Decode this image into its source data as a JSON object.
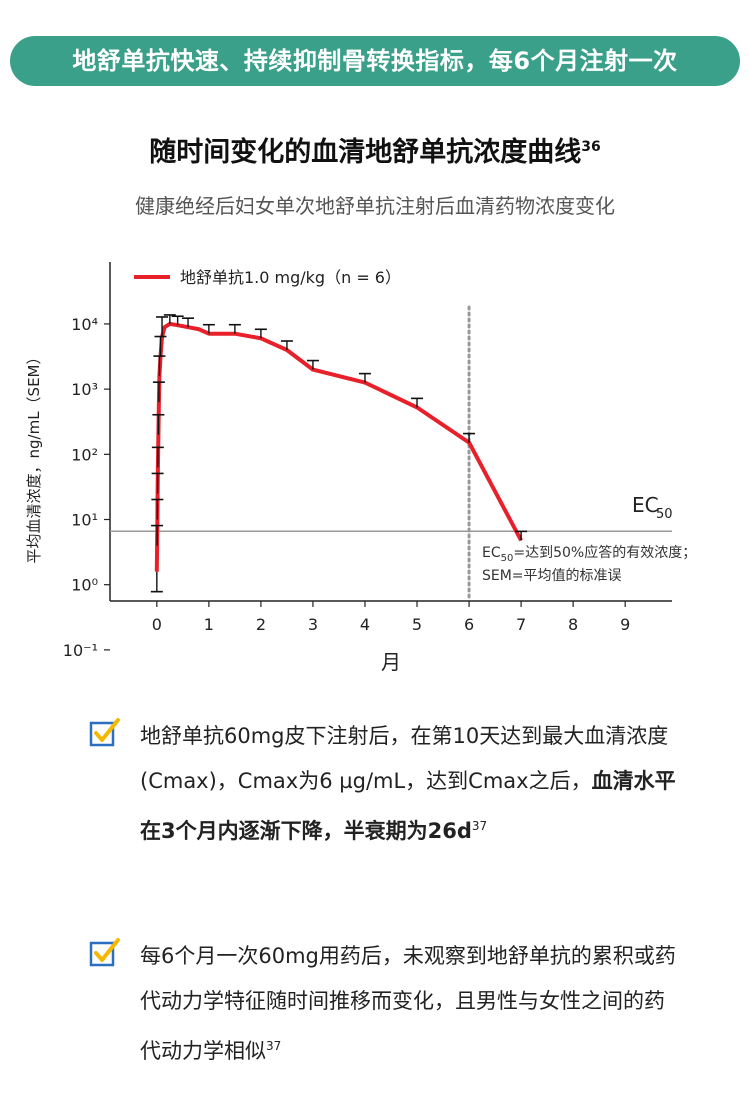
{
  "banner": "地舒单抗快速、持续抑制骨转换指标，每6个月注射一次",
  "title": "随时间变化的血清地舒单抗浓度曲线",
  "title_ref": "36",
  "subtitle": "健康绝经后妇女单次地舒单抗注射后血清药物浓度变化",
  "chart_data": {
    "type": "line",
    "xlabel": "月",
    "ylabel": "平均血清浓度，ng/mL（SEM）",
    "x_ticks": [
      "0",
      "1",
      "2",
      "3",
      "4",
      "5",
      "6",
      "7",
      "8",
      "9"
    ],
    "y_ticks": [
      "10⁻¹",
      "10⁰",
      "10¹",
      "10²",
      "10³",
      "10⁴"
    ],
    "xlim": [
      -0.9,
      9.9
    ],
    "ylim": [
      -0.25,
      4.95
    ],
    "y_scale": "log10",
    "legend_position": "top-left",
    "series": [
      {
        "name": "地舒单抗1.0 mg/kg（n = 6）",
        "color": "#e8202a",
        "points": [
          [
            0,
            0.2
          ],
          [
            0.005,
            0.6
          ],
          [
            0.01,
            1.0
          ],
          [
            0.015,
            1.4
          ],
          [
            0.02,
            1.8
          ],
          [
            0.03,
            2.3
          ],
          [
            0.04,
            2.8
          ],
          [
            0.05,
            3.2
          ],
          [
            0.07,
            3.5
          ],
          [
            0.1,
            3.8
          ],
          [
            0.15,
            3.95
          ],
          [
            0.25,
            4.0
          ],
          [
            0.4,
            3.98
          ],
          [
            0.6,
            3.95
          ],
          [
            0.8,
            3.92
          ],
          [
            1.0,
            3.85
          ],
          [
            1.5,
            3.85
          ],
          [
            2.0,
            3.78
          ],
          [
            2.5,
            3.6
          ],
          [
            3.0,
            3.3
          ],
          [
            4.0,
            3.1
          ],
          [
            5.0,
            2.72
          ],
          [
            6.0,
            2.18
          ],
          [
            7.0,
            0.68
          ]
        ],
        "error_points": [
          [
            0,
            0.2
          ],
          [
            0.005,
            0.6
          ],
          [
            0.01,
            1.0
          ],
          [
            0.015,
            1.4
          ],
          [
            0.02,
            1.8
          ],
          [
            0.03,
            2.3
          ],
          [
            0.04,
            2.8
          ],
          [
            0.05,
            3.2
          ],
          [
            0.07,
            3.5
          ],
          [
            0.1,
            3.8
          ],
          [
            0.25,
            4.0
          ],
          [
            0.4,
            3.98
          ],
          [
            0.6,
            3.95
          ],
          [
            1.0,
            3.85
          ],
          [
            1.5,
            3.85
          ],
          [
            2.0,
            3.78
          ],
          [
            2.5,
            3.6
          ],
          [
            3.0,
            3.3
          ],
          [
            4.0,
            3.1
          ],
          [
            5.0,
            2.72
          ],
          [
            6.0,
            2.18
          ],
          [
            7.0,
            0.68
          ]
        ]
      }
    ],
    "ec50_level_log10": 0.82,
    "ec50_label": "EC",
    "ec50_sub": "50",
    "vline_month": 6,
    "annotation_line1_pre": "EC",
    "annotation_line1_sub": "50",
    "annotation_line1_post": "=达到50%应答的有效浓度；",
    "annotation_line2": "SEM=平均值的标准误"
  },
  "notes": [
    {
      "text_plain": "地舒单抗60mg皮下注射后，在第10天达到最大血清浓度(Cmax)，Cmax为6 µg/mL，达到Cmax之后，",
      "text_bold": "血清水平在3个月内逐渐下降，半衰期为26d",
      "ref": "37"
    },
    {
      "text_plain": "每6个月一次60mg用药后，未观察到地舒单抗的累积或药代动力学特征随时间推移而变化，且男性与女性之间的药代动力学相似",
      "text_bold": "",
      "ref": "37"
    }
  ],
  "colors": {
    "banner": "#3aa08a",
    "series": "#e8202a",
    "check": "#f5b800",
    "check_box": "#2a6fc0"
  }
}
